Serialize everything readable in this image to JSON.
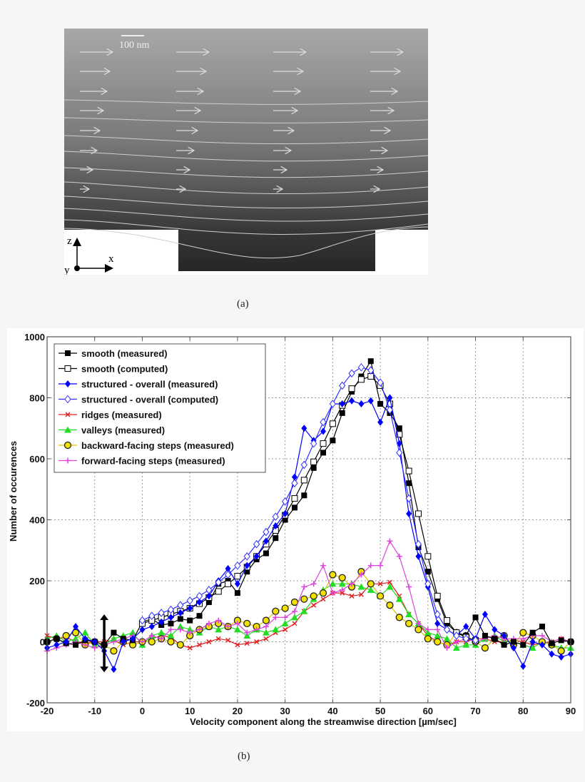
{
  "figure_a": {
    "caption": "(a)",
    "scale_bar_label": "100 nm",
    "axes": {
      "z": "z",
      "x": "x",
      "y": "y"
    }
  },
  "figure_b": {
    "caption": "(b)"
  },
  "chart_data": {
    "type": "line",
    "title": "",
    "xlabel": "Velocity component along the streamwise direction [µm/sec]",
    "ylabel": "Number of occurences",
    "xlim": [
      -20,
      90
    ],
    "ylim": [
      -200,
      1000
    ],
    "xticks": [
      -20,
      -10,
      0,
      10,
      20,
      30,
      40,
      50,
      60,
      70,
      80,
      90
    ],
    "yticks": [
      -200,
      0,
      200,
      400,
      600,
      800,
      1000
    ],
    "grid": true,
    "legend_position": "upper left",
    "annotations": [
      {
        "type": "double-arrow",
        "x": -8,
        "y_range": [
          -100,
          90
        ],
        "color": "#000000"
      }
    ],
    "series": [
      {
        "name": "smooth (measured)",
        "color": "#000000",
        "marker": "filled-square",
        "x": [
          -20,
          -18,
          -16,
          -14,
          -12,
          -10,
          -8,
          -6,
          -4,
          -2,
          0,
          2,
          4,
          6,
          8,
          10,
          12,
          14,
          16,
          18,
          20,
          22,
          24,
          26,
          28,
          30,
          32,
          34,
          36,
          38,
          40,
          42,
          44,
          46,
          48,
          50,
          52,
          54,
          56,
          58,
          60,
          62,
          64,
          66,
          68,
          70,
          72,
          74,
          76,
          78,
          80,
          82,
          84,
          86,
          88,
          90
        ],
        "y": [
          0,
          10,
          -5,
          -10,
          5,
          0,
          -10,
          30,
          10,
          5,
          65,
          75,
          55,
          60,
          75,
          70,
          85,
          130,
          190,
          200,
          160,
          230,
          270,
          290,
          340,
          400,
          440,
          480,
          570,
          620,
          660,
          750,
          820,
          870,
          920,
          780,
          750,
          700,
          520,
          310,
          230,
          140,
          60,
          30,
          20,
          80,
          20,
          10,
          -10,
          0,
          -10,
          30,
          50,
          -5,
          5,
          0
        ]
      },
      {
        "name": "smooth (computed)",
        "color": "#000000",
        "marker": "open-square",
        "x": [
          0,
          2,
          4,
          6,
          8,
          10,
          12,
          14,
          16,
          18,
          20,
          22,
          24,
          26,
          28,
          30,
          32,
          34,
          36,
          38,
          40,
          42,
          44,
          46,
          48,
          50,
          52,
          54,
          56,
          58,
          60,
          62,
          64,
          66,
          68,
          70
        ],
        "y": [
          60,
          70,
          80,
          90,
          100,
          110,
          125,
          145,
          165,
          190,
          215,
          245,
          280,
          320,
          365,
          415,
          470,
          530,
          590,
          650,
          715,
          775,
          830,
          860,
          870,
          840,
          780,
          680,
          560,
          420,
          280,
          150,
          70,
          30,
          15,
          5
        ]
      },
      {
        "name": "structured - overall (measured)",
        "color": "#0000ff",
        "marker": "filled-diamond",
        "x": [
          -20,
          -18,
          -16,
          -14,
          -12,
          -10,
          -8,
          -6,
          -4,
          -2,
          0,
          2,
          4,
          6,
          8,
          10,
          12,
          14,
          16,
          18,
          20,
          22,
          24,
          26,
          28,
          30,
          32,
          34,
          36,
          38,
          40,
          42,
          44,
          46,
          48,
          50,
          52,
          54,
          56,
          58,
          60,
          62,
          64,
          66,
          68,
          70,
          72,
          74,
          76,
          78,
          80,
          82,
          84,
          86,
          88,
          90
        ],
        "y": [
          -20,
          -10,
          0,
          50,
          10,
          0,
          -30,
          -90,
          0,
          10,
          40,
          50,
          65,
          80,
          95,
          110,
          130,
          150,
          200,
          240,
          190,
          250,
          280,
          330,
          380,
          420,
          540,
          700,
          660,
          690,
          780,
          780,
          790,
          780,
          790,
          720,
          800,
          650,
          420,
          280,
          180,
          60,
          40,
          20,
          50,
          10,
          90,
          40,
          20,
          -20,
          -80,
          0,
          -10,
          -40,
          -50,
          -40
        ]
      },
      {
        "name": "structured - overall (computed)",
        "color": "#3030ff",
        "marker": "open-diamond",
        "x": [
          0,
          2,
          4,
          6,
          8,
          10,
          12,
          14,
          16,
          18,
          20,
          22,
          24,
          26,
          28,
          30,
          32,
          34,
          36,
          38,
          40,
          42,
          44,
          46,
          48,
          50,
          52,
          54,
          56,
          58,
          60,
          62,
          64,
          66,
          68,
          70
        ],
        "y": [
          70,
          85,
          95,
          105,
          120,
          135,
          150,
          170,
          195,
          220,
          250,
          280,
          320,
          360,
          410,
          460,
          520,
          580,
          650,
          720,
          780,
          840,
          880,
          900,
          890,
          850,
          760,
          620,
          470,
          320,
          190,
          90,
          40,
          20,
          10,
          5
        ]
      },
      {
        "name": "ridges (measured)",
        "color": "#e02020",
        "marker": "x",
        "x": [
          -20,
          -18,
          -16,
          -14,
          -12,
          -10,
          -8,
          -6,
          -4,
          -2,
          0,
          2,
          4,
          6,
          8,
          10,
          12,
          14,
          16,
          18,
          20,
          22,
          24,
          26,
          28,
          30,
          32,
          34,
          36,
          38,
          40,
          42,
          44,
          46,
          48,
          50,
          52,
          54,
          56,
          58,
          60,
          62,
          64,
          66,
          68,
          70,
          72,
          74,
          76,
          78,
          80,
          82,
          84,
          86,
          88,
          90
        ],
        "y": [
          20,
          10,
          15,
          0,
          -5,
          0,
          0,
          5,
          -10,
          0,
          0,
          10,
          20,
          15,
          -10,
          -20,
          -10,
          0,
          10,
          5,
          -10,
          -5,
          0,
          10,
          30,
          40,
          60,
          100,
          120,
          140,
          160,
          160,
          150,
          155,
          190,
          190,
          195,
          150,
          90,
          60,
          20,
          0,
          -10,
          0,
          0,
          10,
          10,
          0,
          0,
          5,
          0,
          -10,
          -5,
          0,
          10,
          0
        ]
      },
      {
        "name": "valleys (measured)",
        "color": "#22dd22",
        "marker": "filled-triangle",
        "x": [
          -20,
          -18,
          -16,
          -14,
          -12,
          -10,
          -8,
          -6,
          -4,
          -2,
          0,
          2,
          4,
          6,
          8,
          10,
          12,
          14,
          16,
          18,
          20,
          22,
          24,
          26,
          28,
          30,
          32,
          34,
          36,
          38,
          40,
          42,
          44,
          46,
          48,
          50,
          52,
          54,
          56,
          58,
          60,
          62,
          64,
          66,
          68,
          70,
          72,
          74,
          76,
          78,
          80,
          82,
          84,
          86,
          88,
          90
        ],
        "y": [
          10,
          20,
          0,
          10,
          30,
          -10,
          -10,
          10,
          20,
          30,
          -10,
          20,
          30,
          20,
          50,
          40,
          30,
          50,
          40,
          50,
          40,
          20,
          40,
          30,
          40,
          60,
          80,
          100,
          140,
          170,
          190,
          190,
          190,
          180,
          170,
          150,
          180,
          140,
          90,
          60,
          30,
          20,
          10,
          -20,
          -10,
          -10,
          10,
          20,
          0,
          0,
          -10,
          -20,
          0,
          -10,
          -20,
          -20
        ]
      },
      {
        "name": "backward-facing steps (measured)",
        "color": "#e8d800",
        "marker": "open-circle-yellow",
        "x": [
          -20,
          -18,
          -16,
          -14,
          -12,
          -10,
          -8,
          -6,
          -4,
          -2,
          0,
          2,
          4,
          6,
          8,
          10,
          12,
          14,
          16,
          18,
          20,
          22,
          24,
          26,
          28,
          30,
          32,
          34,
          36,
          38,
          40,
          42,
          44,
          46,
          48,
          50,
          52,
          54,
          56,
          58,
          60,
          62,
          64,
          66,
          68,
          70,
          72,
          74,
          76,
          78,
          80,
          82,
          84,
          86,
          88,
          90
        ],
        "y": [
          0,
          10,
          20,
          30,
          -10,
          0,
          -10,
          -30,
          0,
          -10,
          0,
          0,
          10,
          0,
          -10,
          20,
          40,
          50,
          60,
          50,
          70,
          60,
          50,
          70,
          100,
          110,
          130,
          140,
          150,
          160,
          220,
          210,
          180,
          230,
          190,
          150,
          120,
          80,
          60,
          40,
          10,
          0,
          -10,
          30,
          20,
          0,
          -20,
          10,
          20,
          -10,
          30,
          20,
          0,
          -10,
          -30,
          0
        ]
      },
      {
        "name": "forward-facing steps (measured)",
        "color": "#dd44dd",
        "marker": "plus",
        "x": [
          -20,
          -18,
          -16,
          -14,
          -12,
          -10,
          -8,
          -6,
          -4,
          -2,
          0,
          2,
          4,
          6,
          8,
          10,
          12,
          14,
          16,
          18,
          20,
          22,
          24,
          26,
          28,
          30,
          32,
          34,
          36,
          38,
          40,
          42,
          44,
          46,
          48,
          50,
          52,
          54,
          56,
          58,
          60,
          62,
          64,
          66,
          68,
          70,
          72,
          74,
          76,
          78,
          80,
          82,
          84,
          86,
          88,
          90
        ],
        "y": [
          -30,
          -20,
          -10,
          0,
          -10,
          -20,
          -10,
          0,
          10,
          20,
          0,
          20,
          10,
          40,
          40,
          30,
          40,
          60,
          70,
          50,
          60,
          30,
          40,
          50,
          80,
          80,
          100,
          180,
          190,
          250,
          160,
          170,
          190,
          220,
          250,
          250,
          330,
          280,
          180,
          60,
          40,
          40,
          -20,
          0,
          10,
          0,
          10,
          20,
          10,
          10,
          10,
          20,
          20,
          0,
          10,
          0
        ]
      }
    ]
  }
}
